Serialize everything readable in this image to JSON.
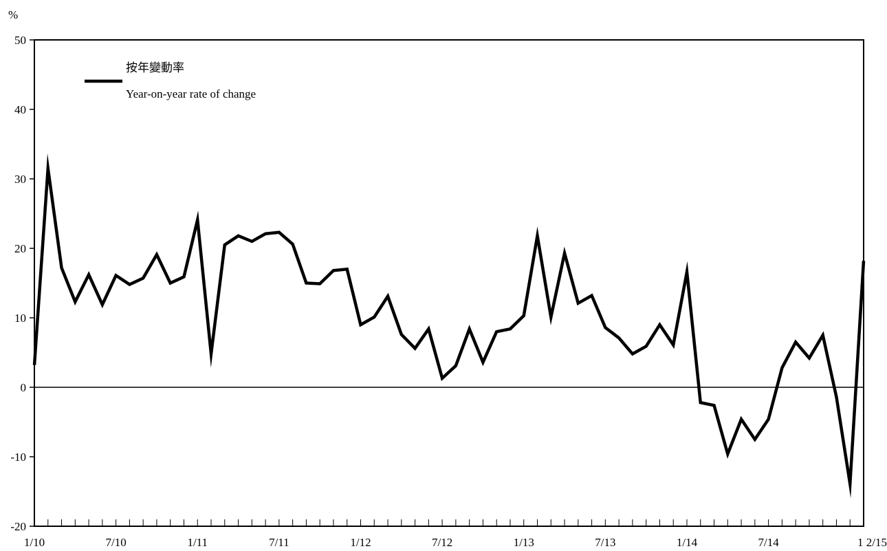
{
  "chart_data": {
    "type": "line",
    "ylabel": "%",
    "ylim": [
      -20,
      50
    ],
    "yticks": [
      "50",
      "40",
      "30",
      "20",
      "10",
      "0",
      "-10",
      "-20"
    ],
    "ytick_values": [
      50,
      40,
      30,
      20,
      10,
      0,
      -10,
      -20
    ],
    "xlim": [
      0,
      61
    ],
    "xtick_labels": [
      {
        "label": "1/10",
        "index": 0
      },
      {
        "label": "7/10",
        "index": 6
      },
      {
        "label": "1/11",
        "index": 12
      },
      {
        "label": "7/11",
        "index": 18
      },
      {
        "label": "1/12",
        "index": 24
      },
      {
        "label": "7/12",
        "index": 30
      },
      {
        "label": "1/13",
        "index": 36
      },
      {
        "label": "7/13",
        "index": 42
      },
      {
        "label": "1/14",
        "index": 48
      },
      {
        "label": "7/14",
        "index": 54
      },
      {
        "label": "1 2/15",
        "index": 61
      }
    ],
    "legend": {
      "label_zh": "按年變動率",
      "label_en": "Year-on-year rate of change",
      "placement": "top-left"
    },
    "series": [
      {
        "name": "Year-on-year rate of change",
        "color": "#000000",
        "values": [
          3.2,
          31.5,
          17.2,
          12.3,
          16.2,
          11.9,
          16.1,
          14.8,
          15.7,
          19.1,
          15.0,
          15.9,
          24.1,
          4.8,
          20.5,
          21.8,
          21.0,
          22.1,
          22.3,
          20.6,
          15.0,
          14.9,
          16.8,
          17.0,
          9.0,
          10.1,
          13.1,
          7.6,
          5.6,
          8.4,
          1.3,
          3.1,
          8.4,
          3.6,
          8.0,
          8.4,
          10.3,
          21.8,
          10.1,
          19.3,
          12.1,
          13.2,
          8.6,
          7.1,
          4.8,
          5.9,
          9.0,
          6.1,
          16.6,
          -2.2,
          -2.6,
          -9.6,
          -4.6,
          -7.5,
          -4.6,
          2.8,
          6.5,
          4.2,
          7.5,
          -1.4,
          -13.9,
          18.2
        ]
      }
    ]
  }
}
